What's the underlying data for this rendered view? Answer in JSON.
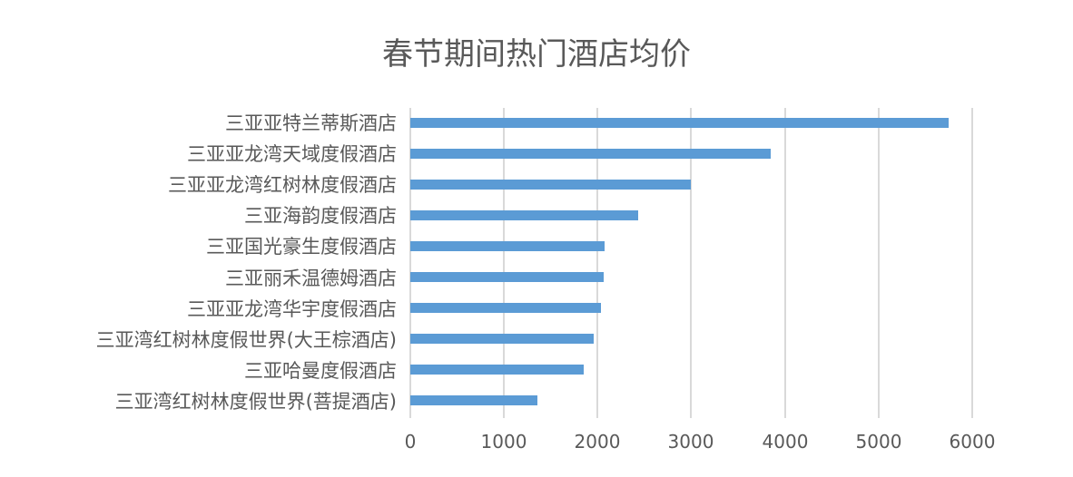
{
  "chart_data": {
    "type": "bar",
    "orientation": "horizontal",
    "title": "春节期间热门酒店均价",
    "xlabel": "",
    "ylabel": "",
    "xlim": [
      0,
      6000
    ],
    "xticks": [
      "0",
      "1000",
      "2000",
      "3000",
      "4000",
      "5000",
      "6000"
    ],
    "grid": true,
    "legend": null,
    "bar_color": "#5b9bd5",
    "categories": [
      "三亚亚特兰蒂斯酒店",
      "三亚亚龙湾天域度假酒店",
      "三亚亚龙湾红树林度假酒店",
      "三亚海韵度假酒店",
      "三亚国光豪生度假酒店",
      "三亚丽禾温德姆酒店",
      "三亚亚龙湾华宇度假酒店",
      "三亚湾红树林度假世界(大王棕酒店)",
      "三亚哈曼度假酒店",
      "三亚湾红树林度假世界(菩提酒店)"
    ],
    "values": [
      5750,
      3850,
      2995,
      2430,
      2075,
      2065,
      2035,
      1960,
      1850,
      1360
    ]
  }
}
